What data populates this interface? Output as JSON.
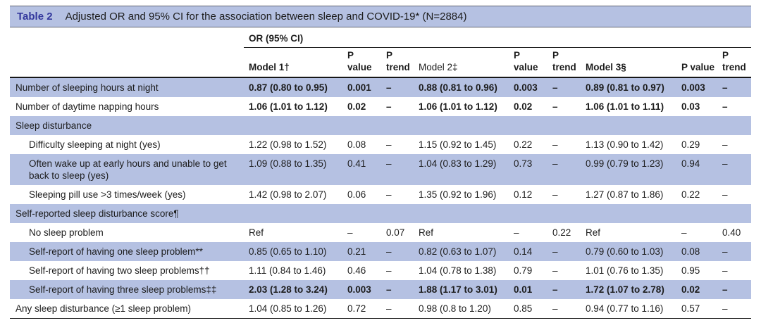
{
  "colors": {
    "row_shade": "#b5c1e2",
    "accent_blue": "#33389d",
    "text": "#1c1c1c",
    "rule_gray": "#5d6270"
  },
  "table": {
    "label": "Table 2",
    "title": "Adjusted OR and 95% CI for the association between sleep and COVID-19* (N=2884)",
    "group_header": "OR (95% CI)",
    "columns": [
      {
        "label": ""
      },
      {
        "label": "Model 1†"
      },
      {
        "label": "P value"
      },
      {
        "label": "P trend"
      },
      {
        "label": "Model 2‡"
      },
      {
        "label": "P value"
      },
      {
        "label": "P trend"
      },
      {
        "label": "Model 3§"
      },
      {
        "label": "P value"
      },
      {
        "label": "P trend"
      }
    ],
    "rows": [
      {
        "label": "Number of sleeping hours at night",
        "indent": false,
        "section": false,
        "bold": true,
        "values": [
          "0.87 (0.80 to 0.95)",
          "0.001",
          "–",
          "0.88 (0.81 to 0.96)",
          "0.003",
          "–",
          "0.89 (0.81 to 0.97)",
          "0.003",
          "–"
        ]
      },
      {
        "label": "Number of daytime napping hours",
        "indent": false,
        "section": false,
        "bold": true,
        "values": [
          "1.06 (1.01 to 1.12)",
          "0.02",
          "–",
          "1.06 (1.01 to 1.12)",
          "0.02",
          "–",
          "1.06 (1.01 to 1.11)",
          "0.03",
          "–"
        ]
      },
      {
        "label": "Sleep disturbance",
        "indent": false,
        "section": true,
        "bold": false,
        "values": []
      },
      {
        "label": "Difficulty sleeping at night (yes)",
        "indent": true,
        "section": false,
        "bold": false,
        "values": [
          "1.22 (0.98 to 1.52)",
          "0.08",
          "–",
          "1.15 (0.92 to 1.45)",
          "0.22",
          "–",
          "1.13 (0.90 to 1.42)",
          "0.29",
          "–"
        ]
      },
      {
        "label": "Often wake up at early hours and unable to get back to sleep (yes)",
        "indent": true,
        "section": false,
        "bold": false,
        "values": [
          "1.09 (0.88 to 1.35)",
          "0.41",
          "–",
          "1.04 (0.83 to 1.29)",
          "0.73",
          "–",
          "0.99 (0.79 to 1.23)",
          "0.94",
          "–"
        ]
      },
      {
        "label": "Sleeping pill use >3 times/week (yes)",
        "indent": true,
        "section": false,
        "bold": false,
        "values": [
          "1.42 (0.98 to 2.07)",
          "0.06",
          "–",
          "1.35 (0.92 to 1.96)",
          "0.12",
          "–",
          "1.27 (0.87 to 1.86)",
          "0.22",
          "–"
        ]
      },
      {
        "label": "Self-reported sleep disturbance score¶",
        "indent": false,
        "section": true,
        "bold": false,
        "values": []
      },
      {
        "label": "No sleep problem",
        "indent": true,
        "section": false,
        "bold": false,
        "values": [
          "Ref",
          "–",
          "0.07",
          "Ref",
          "–",
          "0.22",
          "Ref",
          "–",
          "0.40"
        ]
      },
      {
        "label": "Self-report of having one sleep problem**",
        "indent": true,
        "section": false,
        "bold": false,
        "values": [
          "0.85 (0.65 to 1.10)",
          "0.21",
          "–",
          "0.82 (0.63 to 1.07)",
          "0.14",
          "–",
          "0.79 (0.60 to 1.03)",
          "0.08",
          "–"
        ]
      },
      {
        "label": "Self-report of having two sleep problems††",
        "indent": true,
        "section": false,
        "bold": false,
        "values": [
          "1.11 (0.84 to 1.46)",
          "0.46",
          "–",
          "1.04 (0.78 to 1.38)",
          "0.79",
          "–",
          "1.01 (0.76 to 1.35)",
          "0.95",
          "–"
        ]
      },
      {
        "label": "Self-report of having three sleep problems‡‡",
        "indent": true,
        "section": false,
        "bold": true,
        "values": [
          "2.03 (1.28 to 3.24)",
          "0.003",
          "–",
          "1.88 (1.17 to 3.01)",
          "0.01",
          "–",
          "1.72 (1.07 to 2.78)",
          "0.02",
          "–"
        ]
      },
      {
        "label": "Any sleep disturbance (≥1 sleep problem)",
        "indent": false,
        "section": false,
        "bold": false,
        "values": [
          "1.04 (0.85 to 1.26)",
          "0.72",
          "–",
          "0.98 (0.8 to 1.20)",
          "0.85",
          "–",
          "0.94 (0.77 to 1.16)",
          "0.57",
          "–"
        ]
      }
    ]
  }
}
